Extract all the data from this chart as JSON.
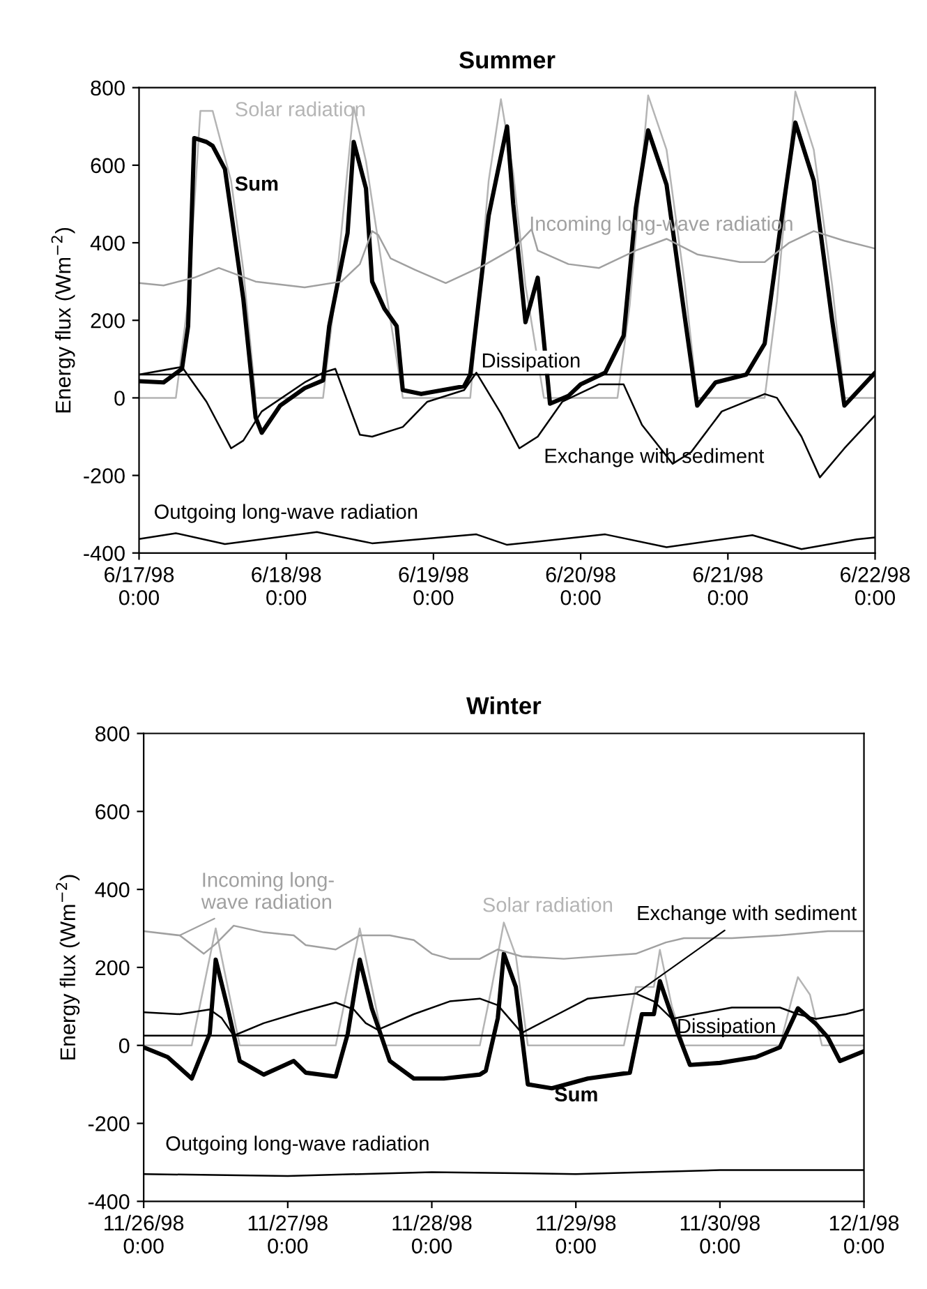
{
  "chart_data": [
    {
      "type": "line",
      "title": "Summer",
      "ylabel": "Energy flux (Wm$^{−2}$)",
      "xlim": [
        "1998-06-17T00:00",
        "1998-06-22T00:00"
      ],
      "xticks": [
        {
          "value": "1998-06-17T00:00",
          "label": "6/17/98\n0:00"
        },
        {
          "value": "1998-06-18T00:00",
          "label": "6/18/98\n0:00"
        },
        {
          "value": "1998-06-19T00:00",
          "label": "6/19/98\n0:00"
        },
        {
          "value": "1998-06-20T00:00",
          "label": "6/20/98\n0:00"
        },
        {
          "value": "1998-06-21T00:00",
          "label": "6/21/98\n0:00"
        },
        {
          "value": "1998-06-22T00:00",
          "label": "6/22/98\n0:00"
        }
      ],
      "ylim": [
        -400,
        800
      ],
      "yticks": [
        -400,
        -200,
        0,
        200,
        400,
        600,
        800
      ],
      "grid": false,
      "legend": false,
      "series": [
        {
          "name": "Solar radiation",
          "color": "#b4b4b4",
          "x": [
            "1998-06-17T00:00",
            "1998-06-17T06:00",
            "1998-06-17T08:00",
            "1998-06-17T10:00",
            "1998-06-17T12:00",
            "1998-06-17T15:00",
            "1998-06-17T17:00",
            "1998-06-17T19:00",
            "1998-06-18T06:00",
            "1998-06-18T08:00",
            "1998-06-18T11:00",
            "1998-06-18T13:00",
            "1998-06-18T16:00",
            "1998-06-18T19:00",
            "1998-06-19T06:00",
            "1998-06-19T09:00",
            "1998-06-19T11:00",
            "1998-06-19T13:00",
            "1998-06-19T15:00",
            "1998-06-19T18:00",
            "1998-06-20T06:00",
            "1998-06-20T08:00",
            "1998-06-20T11:00",
            "1998-06-20T14:00",
            "1998-06-20T17:00",
            "1998-06-20T19:00",
            "1998-06-21T06:00",
            "1998-06-21T08:00",
            "1998-06-21T11:00",
            "1998-06-21T14:00",
            "1998-06-21T17:00",
            "1998-06-21T19:00",
            "1998-06-22T00:00"
          ],
          "values": [
            0,
            0,
            250,
            740,
            740,
            560,
            330,
            0,
            0,
            270,
            750,
            610,
            300,
            0,
            0,
            560,
            770,
            580,
            290,
            0,
            0,
            240,
            780,
            640,
            290,
            0,
            0,
            250,
            790,
            640,
            290,
            0,
            0
          ]
        },
        {
          "name": "Sum",
          "color": "#000000",
          "x": [
            "1998-06-17T00:00",
            "1998-06-17T04:00",
            "1998-06-17T07:00",
            "1998-06-17T08:00",
            "1998-06-17T09:00",
            "1998-06-17T11:00",
            "1998-06-17T12:00",
            "1998-06-17T14:00",
            "1998-06-17T15:00",
            "1998-06-17T17:00",
            "1998-06-17T19:00",
            "1998-06-17T20:00",
            "1998-06-17T23:00",
            "1998-06-18T03:00",
            "1998-06-18T06:00",
            "1998-06-18T07:00",
            "1998-06-18T10:00",
            "1998-06-18T11:00",
            "1998-06-18T13:00",
            "1998-06-18T14:00",
            "1998-06-18T16:00",
            "1998-06-18T18:00",
            "1998-06-18T19:00",
            "1998-06-18T22:00",
            "1998-06-19T05:00",
            "1998-06-19T06:00",
            "1998-06-19T09:00",
            "1998-06-19T12:00",
            "1998-06-19T13:00",
            "1998-06-19T15:00",
            "1998-06-19T17:00",
            "1998-06-19T19:00",
            "1998-06-19T22:00",
            "1998-06-20T00:00",
            "1998-06-20T04:00",
            "1998-06-20T07:00",
            "1998-06-20T09:00",
            "1998-06-20T11:00",
            "1998-06-20T14:00",
            "1998-06-20T17:00",
            "1998-06-20T19:00",
            "1998-06-20T22:00",
            "1998-06-21T03:00",
            "1998-06-21T06:00",
            "1998-06-21T09:00",
            "1998-06-21T11:00",
            "1998-06-21T14:00",
            "1998-06-21T17:00",
            "1998-06-21T19:00",
            "1998-06-22T00:00"
          ],
          "values": [
            43,
            40,
            75,
            185,
            670,
            660,
            650,
            590,
            480,
            255,
            -50,
            -90,
            -20,
            25,
            45,
            185,
            425,
            660,
            540,
            300,
            230,
            185,
            20,
            10,
            30,
            60,
            470,
            700,
            500,
            195,
            310,
            -15,
            5,
            35,
            65,
            160,
            490,
            690,
            550,
            205,
            -20,
            40,
            60,
            140,
            490,
            710,
            560,
            200,
            -20,
            65
          ]
        },
        {
          "name": "Incoming long-wave radiation",
          "color": "#a0a0a0",
          "x": [
            "1998-06-17T00:00",
            "1998-06-17T04:00",
            "1998-06-17T09:00",
            "1998-06-17T13:00",
            "1998-06-17T19:00",
            "1998-06-18T03:00",
            "1998-06-18T09:00",
            "1998-06-18T12:00",
            "1998-06-18T14:00",
            "1998-06-18T15:00",
            "1998-06-18T17:00",
            "1998-06-18T21:00",
            "1998-06-19T02:00",
            "1998-06-19T08:00",
            "1998-06-19T13:00",
            "1998-06-19T16:00",
            "1998-06-19T17:00",
            "1998-06-19T22:00",
            "1998-06-20T03:00",
            "1998-06-20T09:00",
            "1998-06-20T14:00",
            "1998-06-20T19:00",
            "1998-06-21T02:00",
            "1998-06-21T06:00",
            "1998-06-21T10:00",
            "1998-06-21T14:00",
            "1998-06-21T19:00",
            "1998-06-22T00:00"
          ],
          "values": [
            296,
            290,
            310,
            335,
            300,
            285,
            300,
            345,
            430,
            420,
            360,
            330,
            296,
            340,
            385,
            435,
            380,
            345,
            335,
            380,
            410,
            370,
            350,
            350,
            400,
            430,
            405,
            385
          ]
        },
        {
          "name": "Dissipation",
          "color": "#000000",
          "x": [
            "1998-06-17T00:00",
            "1998-06-22T00:00"
          ],
          "values": [
            60,
            60
          ]
        },
        {
          "name": "Exchange with sediment",
          "color": "#000000",
          "x": [
            "1998-06-17T00:00",
            "1998-06-17T07:00",
            "1998-06-17T11:00",
            "1998-06-17T15:00",
            "1998-06-17T17:00",
            "1998-06-17T20:00",
            "1998-06-18T03:00",
            "1998-06-18T06:00",
            "1998-06-18T08:00",
            "1998-06-18T12:00",
            "1998-06-18T14:00",
            "1998-06-18T19:00",
            "1998-06-18T23:00",
            "1998-06-19T05:00",
            "1998-06-19T07:00",
            "1998-06-19T11:00",
            "1998-06-19T14:00",
            "1998-06-19T17:00",
            "1998-06-19T21:00",
            "1998-06-20T03:00",
            "1998-06-20T07:00",
            "1998-06-20T10:00",
            "1998-06-20T15:00",
            "1998-06-20T18:00",
            "1998-06-20T23:00",
            "1998-06-21T06:00",
            "1998-06-21T08:00",
            "1998-06-21T12:00",
            "1998-06-21T15:00",
            "1998-06-21T19:00",
            "1998-06-22T00:00"
          ],
          "values": [
            60,
            80,
            -10,
            -130,
            -110,
            -35,
            40,
            65,
            75,
            -95,
            -100,
            -75,
            -10,
            20,
            65,
            -40,
            -130,
            -100,
            -10,
            35,
            35,
            -70,
            -170,
            -140,
            -35,
            10,
            0,
            -100,
            -205,
            -130,
            -45
          ]
        },
        {
          "name": "Outgoing long-wave radiation",
          "color": "#000000",
          "x": [
            "1998-06-17T00:00",
            "1998-06-17T06:00",
            "1998-06-17T14:00",
            "1998-06-18T05:00",
            "1998-06-18T14:00",
            "1998-06-19T07:00",
            "1998-06-19T12:00",
            "1998-06-20T04:00",
            "1998-06-20T14:00",
            "1998-06-21T04:00",
            "1998-06-21T12:00",
            "1998-06-21T21:00",
            "1998-06-22T00:00"
          ],
          "values": [
            -364,
            -349,
            -377,
            -346,
            -375,
            -352,
            -379,
            -352,
            -385,
            -354,
            -390,
            -365,
            -360
          ]
        }
      ]
    },
    {
      "type": "line",
      "title": "Winter",
      "ylabel": "Energy flux (Wm$^{−2}$)",
      "xlim": [
        "1998-11-26T00:00",
        "1998-12-01T00:00"
      ],
      "xticks": [
        {
          "value": "1998-11-26T00:00",
          "label": "11/26/98\n0:00"
        },
        {
          "value": "1998-11-27T00:00",
          "label": "11/27/98\n0:00"
        },
        {
          "value": "1998-11-28T00:00",
          "label": "11/28/98\n0:00"
        },
        {
          "value": "1998-11-29T00:00",
          "label": "11/29/98\n0:00"
        },
        {
          "value": "1998-11-30T00:00",
          "label": "11/30/98\n0:00"
        },
        {
          "value": "1998-12-01T00:00",
          "label": "12/1/98\n0:00"
        }
      ],
      "ylim": [
        -400,
        800
      ],
      "yticks": [
        -400,
        -200,
        0,
        200,
        400,
        600,
        800
      ],
      "grid": false,
      "legend": false,
      "series": [
        {
          "name": "Solar radiation",
          "color": "#b4b4b4",
          "x": [
            "1998-11-26T00:00",
            "1998-11-26T08:00",
            "1998-11-26T10:00",
            "1998-11-26T12:00",
            "1998-11-26T14:00",
            "1998-11-26T16:00",
            "1998-11-27T08:00",
            "1998-11-27T10:00",
            "1998-11-27T12:00",
            "1998-11-27T14:00",
            "1998-11-27T16:00",
            "1998-11-28T08:00",
            "1998-11-28T10:00",
            "1998-11-28T12:00",
            "1998-11-28T14:00",
            "1998-11-28T16:00",
            "1998-11-29T08:00",
            "1998-11-29T10:00",
            "1998-11-29T13:00",
            "1998-11-29T14:00",
            "1998-11-29T16:00",
            "1998-11-29T18:00",
            "1998-11-30T10:00",
            "1998-11-30T12:00",
            "1998-11-30T13:00",
            "1998-11-30T15:00",
            "1998-11-30T17:00",
            "1998-12-01T00:00"
          ],
          "values": [
            0,
            0,
            150,
            300,
            150,
            0,
            0,
            150,
            300,
            150,
            0,
            0,
            150,
            315,
            230,
            0,
            0,
            150,
            150,
            245,
            100,
            0,
            0,
            120,
            175,
            130,
            0,
            0
          ]
        },
        {
          "name": "Sum",
          "color": "#000000",
          "x": [
            "1998-11-26T00:00",
            "1998-11-26T04:00",
            "1998-11-26T08:00",
            "1998-11-26T11:00",
            "1998-11-26T12:00",
            "1998-11-26T14:00",
            "1998-11-26T16:00",
            "1998-11-26T20:00",
            "1998-11-27T01:00",
            "1998-11-27T03:00",
            "1998-11-27T08:00",
            "1998-11-27T10:00",
            "1998-11-27T12:00",
            "1998-11-27T14:00",
            "1998-11-27T17:00",
            "1998-11-27T21:00",
            "1998-11-28T02:00",
            "1998-11-28T08:00",
            "1998-11-28T09:00",
            "1998-11-28T11:00",
            "1998-11-28T12:00",
            "1998-11-28T14:00",
            "1998-11-28T16:00",
            "1998-11-28T20:00",
            "1998-11-29T02:00",
            "1998-11-29T09:00",
            "1998-11-29T11:00",
            "1998-11-29T13:00",
            "1998-11-29T14:00",
            "1998-11-29T17:00",
            "1998-11-29T19:00",
            "1998-11-30T00:00",
            "1998-11-30T06:00",
            "1998-11-30T10:00",
            "1998-11-30T13:00",
            "1998-11-30T16:00",
            "1998-11-30T18:00",
            "1998-11-30T20:00",
            "1998-12-01T00:00"
          ],
          "values": [
            -5,
            -30,
            -85,
            30,
            220,
            95,
            -40,
            -75,
            -40,
            -70,
            -80,
            30,
            220,
            95,
            -40,
            -85,
            -85,
            -75,
            -65,
            70,
            235,
            150,
            -100,
            -110,
            -85,
            -70,
            80,
            80,
            165,
            30,
            -50,
            -45,
            -30,
            -5,
            95,
            55,
            20,
            -40,
            -15
          ]
        },
        {
          "name": "Incoming long-\nwave radiation",
          "color": "#a0a0a0",
          "x": [
            "1998-11-26T00:00",
            "1998-11-26T06:00",
            "1998-11-26T10:00",
            "1998-11-26T12:00",
            "1998-11-26T15:00",
            "1998-11-26T20:00",
            "1998-11-27T01:00",
            "1998-11-27T03:00",
            "1998-11-27T08:00",
            "1998-11-27T12:00",
            "1998-11-27T17:00",
            "1998-11-27T21:00",
            "1998-11-28T00:00",
            "1998-11-28T03:00",
            "1998-11-28T08:00",
            "1998-11-28T11:00",
            "1998-11-28T15:00",
            "1998-11-28T22:00",
            "1998-11-29T10:00",
            "1998-11-29T15:00",
            "1998-11-29T18:00",
            "1998-11-30T02:00",
            "1998-11-30T10:00",
            "1998-11-30T18:00",
            "1998-12-01T00:00"
          ],
          "values": [
            293,
            282,
            235,
            260,
            307,
            290,
            282,
            257,
            246,
            282,
            282,
            270,
            235,
            222,
            222,
            246,
            228,
            222,
            235,
            264,
            275,
            275,
            282,
            293,
            293
          ]
        },
        {
          "name": "Dissipation",
          "color": "#000000",
          "x": [
            "1998-11-26T00:00",
            "1998-12-01T00:00"
          ],
          "values": [
            25,
            25
          ]
        },
        {
          "name": "Exchange with sediment",
          "color": "#000000",
          "x": [
            "1998-11-26T00:00",
            "1998-11-26T06:00",
            "1998-11-26T11:00",
            "1998-11-26T13:00",
            "1998-11-26T15:00",
            "1998-11-26T20:00",
            "1998-11-27T02:00",
            "1998-11-27T08:00",
            "1998-11-27T11:00",
            "1998-11-27T13:00",
            "1998-11-27T15:00",
            "1998-11-27T21:00",
            "1998-11-28T03:00",
            "1998-11-28T08:00",
            "1998-11-28T11:00",
            "1998-11-28T15:00",
            "1998-11-28T21:00",
            "1998-11-29T02:00",
            "1998-11-29T10:00",
            "1998-11-29T13:00",
            "1998-11-29T16:00",
            "1998-11-29T20:00",
            "1998-11-30T02:00",
            "1998-11-30T10:00",
            "1998-11-30T13:00",
            "1998-11-30T16:00",
            "1998-11-30T21:00",
            "1998-12-01T00:00"
          ],
          "values": [
            85,
            80,
            92,
            70,
            25,
            57,
            85,
            110,
            92,
            57,
            40,
            80,
            113,
            120,
            103,
            32,
            80,
            120,
            133,
            113,
            68,
            80,
            97,
            97,
            80,
            68,
            80,
            92
          ]
        },
        {
          "name": "Outgoing long-wave radiation",
          "color": "#000000",
          "x": [
            "1998-11-26T00:00",
            "1998-11-27T00:00",
            "1998-11-28T00:00",
            "1998-11-29T00:00",
            "1998-11-30T00:00",
            "1998-12-01T00:00"
          ],
          "values": [
            -330,
            -335,
            -325,
            -330,
            -320,
            -320
          ]
        }
      ]
    }
  ]
}
